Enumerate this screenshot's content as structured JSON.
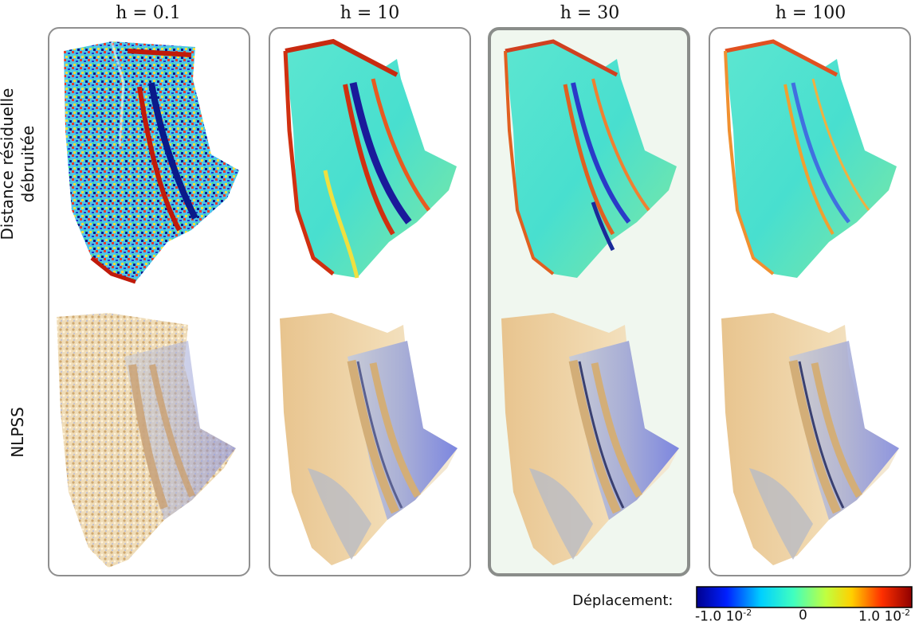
{
  "columns": [
    {
      "label": "h = 0.1",
      "selected": false
    },
    {
      "label": "h = 10",
      "selected": false
    },
    {
      "label": "h = 30",
      "selected": true
    },
    {
      "label": "h = 100",
      "selected": false
    }
  ],
  "rows": {
    "top": {
      "line1": "Distance résiduelle",
      "line2": "débruitée"
    },
    "bottom": {
      "label": "NLPSS"
    }
  },
  "colorbar": {
    "label": "Déplacement:",
    "tick_min": "-1.0 10",
    "tick_min_exp": "-2",
    "tick_mid": "0",
    "tick_max": "1.0 10",
    "tick_max_exp": "-2",
    "colormap": "jet",
    "colors": [
      "#00008f",
      "#0020ff",
      "#00d0ff",
      "#40ffbf",
      "#c0ff40",
      "#ffd000",
      "#ff3000",
      "#8f0000"
    ]
  },
  "accent_colors": {
    "selected_border": "#8a8d8a",
    "selected_bg": "#f0f7ef",
    "panel_border": "#8f8f8f"
  }
}
